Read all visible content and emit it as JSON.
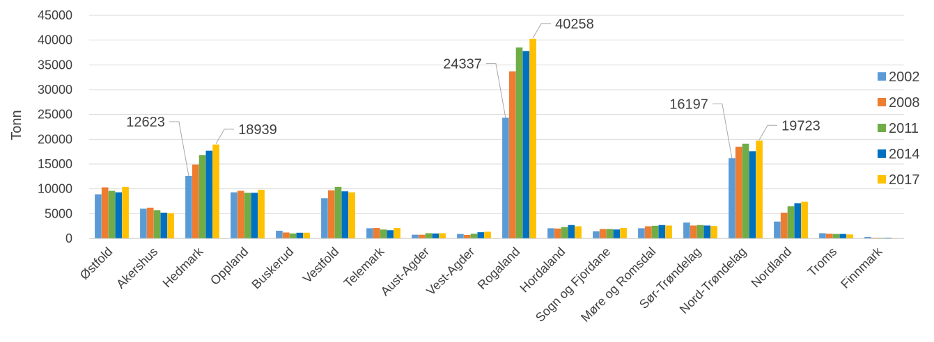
{
  "chart_data": {
    "type": "bar",
    "title": "",
    "xlabel": "",
    "ylabel": "Tonn",
    "ylim": [
      0,
      45000
    ],
    "yticks": [
      0,
      5000,
      10000,
      15000,
      20000,
      25000,
      30000,
      35000,
      40000,
      45000
    ],
    "grid": "horizontal",
    "legend_position": "right",
    "categories": [
      "Østfold",
      "Akershus",
      "Hedmark",
      "Oppland",
      "Buskerud",
      "Vestfold",
      "Telemark",
      "Aust-Agder",
      "Vest-Agder",
      "Rogaland",
      "Hordaland",
      "Sogn og Fjordane",
      "Møre og Romsdal",
      "Sør-Trøndelag",
      "Nord-Trøndelag",
      "Nordland",
      "Troms",
      "Finnmark"
    ],
    "series": [
      {
        "name": "2002",
        "color": "#5B9BD5",
        "values": [
          8900,
          6000,
          12623,
          9300,
          1550,
          8100,
          2050,
          750,
          900,
          24337,
          2050,
          1450,
          2050,
          3200,
          16197,
          3400,
          1050,
          300
        ]
      },
      {
        "name": "2008",
        "color": "#ED7D31",
        "values": [
          10300,
          6200,
          14900,
          9600,
          1200,
          9700,
          2100,
          750,
          700,
          33700,
          2000,
          1900,
          2450,
          2600,
          18500,
          5200,
          950,
          150
        ]
      },
      {
        "name": "2011",
        "color": "#70AD47",
        "values": [
          9600,
          5700,
          16800,
          9200,
          1000,
          10400,
          1800,
          1050,
          950,
          38500,
          2300,
          1900,
          2550,
          2700,
          19100,
          6500,
          900,
          150
        ]
      },
      {
        "name": "2014",
        "color": "#0070C0",
        "values": [
          9300,
          5200,
          17700,
          9200,
          1150,
          9500,
          1650,
          1000,
          1250,
          37800,
          2700,
          1800,
          2700,
          2600,
          17600,
          7100,
          900,
          150
        ]
      },
      {
        "name": "2017",
        "color": "#FFC000",
        "values": [
          10400,
          5100,
          18939,
          9800,
          1150,
          9300,
          2100,
          1050,
          1350,
          40258,
          2450,
          2100,
          2600,
          2500,
          19723,
          7400,
          800,
          100
        ]
      }
    ],
    "annotations": [
      {
        "category_index": 2,
        "series_index": 0,
        "text": "12623"
      },
      {
        "category_index": 2,
        "series_index": 4,
        "text": "18939"
      },
      {
        "category_index": 9,
        "series_index": 0,
        "text": "24337"
      },
      {
        "category_index": 9,
        "series_index": 4,
        "text": "40258"
      },
      {
        "category_index": 14,
        "series_index": 0,
        "text": "16197"
      },
      {
        "category_index": 14,
        "series_index": 4,
        "text": "19723"
      }
    ]
  }
}
